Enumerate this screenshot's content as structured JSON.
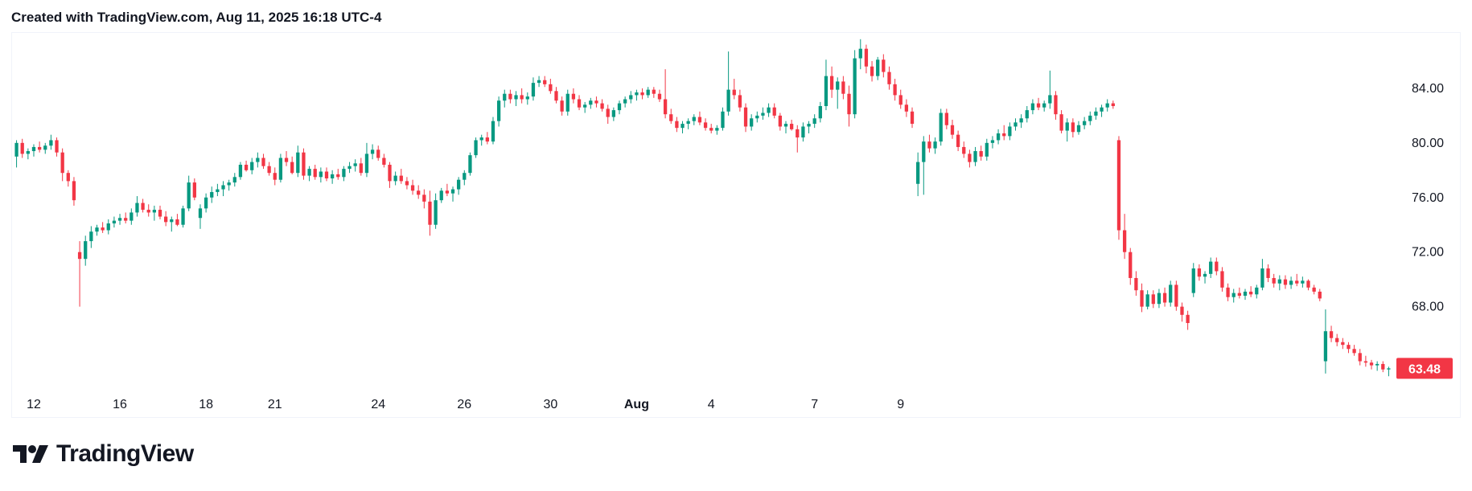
{
  "header": {
    "created_text": "Created with TradingView.com, Aug 11, 2025 16:18 UTC-4"
  },
  "brand": {
    "name": "TradingView",
    "logo_icon": "tradingview-logo-icon"
  },
  "colors": {
    "up": "#089981",
    "down": "#f23645",
    "text": "#131722",
    "border": "#f0f3fa"
  },
  "chart_data": {
    "type": "candlestick",
    "title": "",
    "xlabel": "",
    "ylabel": "",
    "ylim": [
      62.5,
      88.0
    ],
    "price_axis": {
      "ticks": [
        68.0,
        72.0,
        76.0,
        80.0,
        84.0
      ],
      "tick_labels": [
        "68.00",
        "72.00",
        "76.00",
        "80.00",
        "84.00"
      ]
    },
    "time_axis": {
      "labels": [
        {
          "text": "12",
          "index": 3,
          "month": false
        },
        {
          "text": "16",
          "index": 18,
          "month": false
        },
        {
          "text": "18",
          "index": 33,
          "month": false
        },
        {
          "text": "21",
          "index": 45,
          "month": false
        },
        {
          "text": "24",
          "index": 63,
          "month": false
        },
        {
          "text": "26",
          "index": 78,
          "month": false
        },
        {
          "text": "30",
          "index": 93,
          "month": false
        },
        {
          "text": "Aug",
          "index": 108,
          "month": true
        },
        {
          "text": "4",
          "index": 121,
          "month": false
        },
        {
          "text": "7",
          "index": 139,
          "month": false
        },
        {
          "text": "9",
          "index": 154,
          "month": false
        }
      ]
    },
    "last_price": {
      "value": 63.48,
      "label": "63.48"
    },
    "candles": [
      [
        79.0,
        80.2,
        78.2,
        80.0
      ],
      [
        80.0,
        80.3,
        78.9,
        79.2
      ],
      [
        79.2,
        79.6,
        78.8,
        79.4
      ],
      [
        79.4,
        79.9,
        79.0,
        79.7
      ],
      [
        79.7,
        80.1,
        79.3,
        79.5
      ],
      [
        79.5,
        80.0,
        79.2,
        79.8
      ],
      [
        79.8,
        80.6,
        79.5,
        80.2
      ],
      [
        80.2,
        80.4,
        79.0,
        79.3
      ],
      [
        79.3,
        79.6,
        77.2,
        77.8
      ],
      [
        77.8,
        78.0,
        76.8,
        77.2
      ],
      [
        77.2,
        77.5,
        75.4,
        75.8
      ],
      [
        72.0,
        72.8,
        68.0,
        71.5
      ],
      [
        71.5,
        73.2,
        71.0,
        72.8
      ],
      [
        72.8,
        73.9,
        72.3,
        73.5
      ],
      [
        73.5,
        74.0,
        73.2,
        73.8
      ],
      [
        73.8,
        74.2,
        73.4,
        73.6
      ],
      [
        73.6,
        74.4,
        73.3,
        74.1
      ],
      [
        74.1,
        74.6,
        73.8,
        74.3
      ],
      [
        74.3,
        74.8,
        74.0,
        74.5
      ],
      [
        74.5,
        74.9,
        74.1,
        74.3
      ],
      [
        74.3,
        75.2,
        74.0,
        74.9
      ],
      [
        74.9,
        76.1,
        74.6,
        75.6
      ],
      [
        75.6,
        75.9,
        74.9,
        75.1
      ],
      [
        75.1,
        75.5,
        74.6,
        74.9
      ],
      [
        74.9,
        75.4,
        74.3,
        75.1
      ],
      [
        75.1,
        75.4,
        74.4,
        74.6
      ],
      [
        74.6,
        75.0,
        73.9,
        74.2
      ],
      [
        74.2,
        74.6,
        73.5,
        74.4
      ],
      [
        74.4,
        74.8,
        73.9,
        74.0
      ],
      [
        74.0,
        75.4,
        73.8,
        75.2
      ],
      [
        75.2,
        77.6,
        75.0,
        77.1
      ],
      [
        77.1,
        77.4,
        75.8,
        76.0
      ],
      [
        74.5,
        75.5,
        73.7,
        75.2
      ],
      [
        75.2,
        76.3,
        74.9,
        76.0
      ],
      [
        76.0,
        76.8,
        75.6,
        76.4
      ],
      [
        76.4,
        77.0,
        76.1,
        76.6
      ],
      [
        76.6,
        77.2,
        76.1,
        76.9
      ],
      [
        76.9,
        77.3,
        76.5,
        77.1
      ],
      [
        77.1,
        77.8,
        76.8,
        77.5
      ],
      [
        77.5,
        78.6,
        77.3,
        78.4
      ],
      [
        78.4,
        78.7,
        77.9,
        78.0
      ],
      [
        78.0,
        78.9,
        77.7,
        78.6
      ],
      [
        78.6,
        79.3,
        78.2,
        78.9
      ],
      [
        78.9,
        79.2,
        78.1,
        78.3
      ],
      [
        78.3,
        78.6,
        77.6,
        77.8
      ],
      [
        77.8,
        78.2,
        76.9,
        77.3
      ],
      [
        77.3,
        79.2,
        77.1,
        78.9
      ],
      [
        78.9,
        79.4,
        78.3,
        78.6
      ],
      [
        78.6,
        79.0,
        77.7,
        77.8
      ],
      [
        77.8,
        79.8,
        77.5,
        79.3
      ],
      [
        79.3,
        79.6,
        77.3,
        77.6
      ],
      [
        77.6,
        78.3,
        77.2,
        78.1
      ],
      [
        78.1,
        78.4,
        77.3,
        77.5
      ],
      [
        77.5,
        78.2,
        77.1,
        77.9
      ],
      [
        77.9,
        78.2,
        77.2,
        77.4
      ],
      [
        77.4,
        78.0,
        77.0,
        77.7
      ],
      [
        77.7,
        78.1,
        77.3,
        77.5
      ],
      [
        77.5,
        78.3,
        77.2,
        78.1
      ],
      [
        78.1,
        78.6,
        77.8,
        78.3
      ],
      [
        78.3,
        78.8,
        77.9,
        78.5
      ],
      [
        78.5,
        78.9,
        77.6,
        77.8
      ],
      [
        77.8,
        80.0,
        77.5,
        79.2
      ],
      [
        79.2,
        79.9,
        78.8,
        79.5
      ],
      [
        79.5,
        79.8,
        78.7,
        78.9
      ],
      [
        78.9,
        79.2,
        78.2,
        78.4
      ],
      [
        78.4,
        78.6,
        76.7,
        77.2
      ],
      [
        77.2,
        77.9,
        76.9,
        77.6
      ],
      [
        77.6,
        78.1,
        77.0,
        77.2
      ],
      [
        77.2,
        77.5,
        76.6,
        76.9
      ],
      [
        76.9,
        77.3,
        76.2,
        76.5
      ],
      [
        76.5,
        76.9,
        75.9,
        76.2
      ],
      [
        76.2,
        76.6,
        75.2,
        75.7
      ],
      [
        75.7,
        76.5,
        73.2,
        74.0
      ],
      [
        74.0,
        76.3,
        73.7,
        75.8
      ],
      [
        75.8,
        76.7,
        75.6,
        76.5
      ],
      [
        76.5,
        77.0,
        76.1,
        76.3
      ],
      [
        76.3,
        76.8,
        75.7,
        76.6
      ],
      [
        76.6,
        77.5,
        76.2,
        77.3
      ],
      [
        77.3,
        78.0,
        76.9,
        77.8
      ],
      [
        77.8,
        79.3,
        77.6,
        79.1
      ],
      [
        79.1,
        80.4,
        78.9,
        80.2
      ],
      [
        80.2,
        80.6,
        79.8,
        80.4
      ],
      [
        80.4,
        80.8,
        79.9,
        80.1
      ],
      [
        80.1,
        81.9,
        79.9,
        81.6
      ],
      [
        81.6,
        83.4,
        81.2,
        83.1
      ],
      [
        83.1,
        83.9,
        82.6,
        83.6
      ],
      [
        83.6,
        83.9,
        82.9,
        83.2
      ],
      [
        83.2,
        83.8,
        82.7,
        83.5
      ],
      [
        83.5,
        84.0,
        82.9,
        83.2
      ],
      [
        83.2,
        83.7,
        82.8,
        83.4
      ],
      [
        83.4,
        84.8,
        83.1,
        84.4
      ],
      [
        84.4,
        84.9,
        84.1,
        84.6
      ],
      [
        84.6,
        84.9,
        84.1,
        84.3
      ],
      [
        84.3,
        84.7,
        83.6,
        83.8
      ],
      [
        83.8,
        84.1,
        82.9,
        83.1
      ],
      [
        83.1,
        83.4,
        82.0,
        82.3
      ],
      [
        82.3,
        83.9,
        82.0,
        83.6
      ],
      [
        83.6,
        84.0,
        82.9,
        83.2
      ],
      [
        83.2,
        83.5,
        82.4,
        82.6
      ],
      [
        82.6,
        83.0,
        82.2,
        82.8
      ],
      [
        82.8,
        83.3,
        82.5,
        83.1
      ],
      [
        83.1,
        83.4,
        82.6,
        82.9
      ],
      [
        82.9,
        83.2,
        82.3,
        82.5
      ],
      [
        82.5,
        82.8,
        81.4,
        81.9
      ],
      [
        81.9,
        82.6,
        81.6,
        82.4
      ],
      [
        82.4,
        83.1,
        82.1,
        82.9
      ],
      [
        82.9,
        83.4,
        82.6,
        83.2
      ],
      [
        83.2,
        83.8,
        82.9,
        83.5
      ],
      [
        83.5,
        83.9,
        83.1,
        83.7
      ],
      [
        83.7,
        84.0,
        83.2,
        83.5
      ],
      [
        83.5,
        84.1,
        83.3,
        83.9
      ],
      [
        83.9,
        84.1,
        83.3,
        83.6
      ],
      [
        83.6,
        83.9,
        83.0,
        83.2
      ],
      [
        83.2,
        85.4,
        81.8,
        82.1
      ],
      [
        82.1,
        82.5,
        81.4,
        81.6
      ],
      [
        81.6,
        81.9,
        80.8,
        81.1
      ],
      [
        81.1,
        81.6,
        80.7,
        81.4
      ],
      [
        81.4,
        81.8,
        81.0,
        81.6
      ],
      [
        81.6,
        82.1,
        81.3,
        81.9
      ],
      [
        81.9,
        82.3,
        81.3,
        81.5
      ],
      [
        81.5,
        81.8,
        80.9,
        81.1
      ],
      [
        81.1,
        81.4,
        80.7,
        80.9
      ],
      [
        80.9,
        81.3,
        80.6,
        81.1
      ],
      [
        81.1,
        82.6,
        80.9,
        82.3
      ],
      [
        82.3,
        86.7,
        82.0,
        83.9
      ],
      [
        83.9,
        84.7,
        83.2,
        83.5
      ],
      [
        83.5,
        83.9,
        82.3,
        82.6
      ],
      [
        82.6,
        82.9,
        80.8,
        81.2
      ],
      [
        81.2,
        82.1,
        80.9,
        81.8
      ],
      [
        81.8,
        82.3,
        81.5,
        82.0
      ],
      [
        82.0,
        82.6,
        81.7,
        82.2
      ],
      [
        82.2,
        82.9,
        81.9,
        82.6
      ],
      [
        82.6,
        82.9,
        81.8,
        82.0
      ],
      [
        82.0,
        82.2,
        80.9,
        81.2
      ],
      [
        81.2,
        81.6,
        80.7,
        81.4
      ],
      [
        81.4,
        81.7,
        80.9,
        81.0
      ],
      [
        81.0,
        81.3,
        79.3,
        80.4
      ],
      [
        80.4,
        81.5,
        80.1,
        81.2
      ],
      [
        81.2,
        81.6,
        80.7,
        81.4
      ],
      [
        81.4,
        82.1,
        81.1,
        81.8
      ],
      [
        81.8,
        83.0,
        81.5,
        82.7
      ],
      [
        82.7,
        86.1,
        82.4,
        84.9
      ],
      [
        84.9,
        85.6,
        83.3,
        83.9
      ],
      [
        83.9,
        84.8,
        82.5,
        84.5
      ],
      [
        84.5,
        84.9,
        83.2,
        83.6
      ],
      [
        83.6,
        84.2,
        81.2,
        82.1
      ],
      [
        82.1,
        86.8,
        81.8,
        86.2
      ],
      [
        86.2,
        87.6,
        85.4,
        86.9
      ],
      [
        86.9,
        87.2,
        85.1,
        85.6
      ],
      [
        85.6,
        86.0,
        84.5,
        84.9
      ],
      [
        84.9,
        86.3,
        84.6,
        86.1
      ],
      [
        86.1,
        86.5,
        84.8,
        85.2
      ],
      [
        85.2,
        85.6,
        83.9,
        84.3
      ],
      [
        84.3,
        84.7,
        83.1,
        83.5
      ],
      [
        83.5,
        83.9,
        82.5,
        82.8
      ],
      [
        82.8,
        83.2,
        81.9,
        82.3
      ],
      [
        82.3,
        82.6,
        81.1,
        81.4
      ],
      [
        77.0,
        79.3,
        76.1,
        78.6
      ],
      [
        78.6,
        80.5,
        76.2,
        80.1
      ],
      [
        80.1,
        80.6,
        79.3,
        79.6
      ],
      [
        79.6,
        80.4,
        79.2,
        80.1
      ],
      [
        80.1,
        82.5,
        79.8,
        82.2
      ],
      [
        82.2,
        82.5,
        81.0,
        81.3
      ],
      [
        81.3,
        81.7,
        80.3,
        80.6
      ],
      [
        80.6,
        80.9,
        79.4,
        79.7
      ],
      [
        79.7,
        80.1,
        78.9,
        79.2
      ],
      [
        79.2,
        79.5,
        78.2,
        78.6
      ],
      [
        78.6,
        79.7,
        78.3,
        79.4
      ],
      [
        79.4,
        79.8,
        78.7,
        79.0
      ],
      [
        79.0,
        80.3,
        78.7,
        80.0
      ],
      [
        80.0,
        80.5,
        79.6,
        80.2
      ],
      [
        80.2,
        81.0,
        79.9,
        80.7
      ],
      [
        80.7,
        81.3,
        80.2,
        80.5
      ],
      [
        80.5,
        81.5,
        80.2,
        81.2
      ],
      [
        81.2,
        81.8,
        80.9,
        81.5
      ],
      [
        81.5,
        82.1,
        81.1,
        81.8
      ],
      [
        81.8,
        82.7,
        81.5,
        82.4
      ],
      [
        82.4,
        83.2,
        82.1,
        82.9
      ],
      [
        82.9,
        83.3,
        82.4,
        82.6
      ],
      [
        82.6,
        83.1,
        82.3,
        82.9
      ],
      [
        82.9,
        85.3,
        82.5,
        83.5
      ],
      [
        83.5,
        83.8,
        81.7,
        82.1
      ],
      [
        82.1,
        82.4,
        80.7,
        80.9
      ],
      [
        80.9,
        81.8,
        80.1,
        81.5
      ],
      [
        81.5,
        81.8,
        80.4,
        80.8
      ],
      [
        80.8,
        81.6,
        80.6,
        81.3
      ],
      [
        81.3,
        81.9,
        81.0,
        81.6
      ],
      [
        81.6,
        82.3,
        81.3,
        82.0
      ],
      [
        82.0,
        82.6,
        81.7,
        82.3
      ],
      [
        82.3,
        82.8,
        81.9,
        82.6
      ],
      [
        82.6,
        83.2,
        82.3,
        82.9
      ],
      [
        82.9,
        83.1,
        82.5,
        82.7
      ],
      [
        80.2,
        80.5,
        72.9,
        73.6
      ],
      [
        73.6,
        74.8,
        71.5,
        72.0
      ],
      [
        72.0,
        72.3,
        69.6,
        70.1
      ],
      [
        70.1,
        70.6,
        68.8,
        69.2
      ],
      [
        69.2,
        69.7,
        67.6,
        68.0
      ],
      [
        68.0,
        69.2,
        67.8,
        68.9
      ],
      [
        68.9,
        69.2,
        67.9,
        68.2
      ],
      [
        68.2,
        69.3,
        67.9,
        69.0
      ],
      [
        69.0,
        69.4,
        68.0,
        68.3
      ],
      [
        68.3,
        69.9,
        68.0,
        69.6
      ],
      [
        69.6,
        69.9,
        67.7,
        68.0
      ],
      [
        68.0,
        68.3,
        66.9,
        67.4
      ],
      [
        67.4,
        67.7,
        66.3,
        66.8
      ],
      [
        69.0,
        71.2,
        68.7,
        70.8
      ],
      [
        70.8,
        71.1,
        69.9,
        70.2
      ],
      [
        70.2,
        70.6,
        69.7,
        70.4
      ],
      [
        70.4,
        71.6,
        70.1,
        71.3
      ],
      [
        71.3,
        71.6,
        70.3,
        70.6
      ],
      [
        70.6,
        70.9,
        69.1,
        69.4
      ],
      [
        69.4,
        69.7,
        68.4,
        68.7
      ],
      [
        68.7,
        69.3,
        68.3,
        69.0
      ],
      [
        69.0,
        69.4,
        68.6,
        68.8
      ],
      [
        68.8,
        69.3,
        68.5,
        69.1
      ],
      [
        69.1,
        69.5,
        68.7,
        68.9
      ],
      [
        68.9,
        69.6,
        68.6,
        69.4
      ],
      [
        69.4,
        71.5,
        69.2,
        70.8
      ],
      [
        70.8,
        71.1,
        69.8,
        70.1
      ],
      [
        70.1,
        70.4,
        69.4,
        69.7
      ],
      [
        69.7,
        70.3,
        69.2,
        70.0
      ],
      [
        70.0,
        70.3,
        69.3,
        69.6
      ],
      [
        69.6,
        70.2,
        69.3,
        69.9
      ],
      [
        69.9,
        70.4,
        69.5,
        69.7
      ],
      [
        69.7,
        70.2,
        69.4,
        69.9
      ],
      [
        69.9,
        70.0,
        69.2,
        69.4
      ],
      [
        69.4,
        69.6,
        68.9,
        69.1
      ],
      [
        69.1,
        69.3,
        68.4,
        68.6
      ],
      [
        64.0,
        67.8,
        63.1,
        66.2
      ],
      [
        66.2,
        66.6,
        65.4,
        65.7
      ],
      [
        65.7,
        66.0,
        65.1,
        65.4
      ],
      [
        65.4,
        65.7,
        64.9,
        65.2
      ],
      [
        65.2,
        65.4,
        64.6,
        64.9
      ],
      [
        64.9,
        65.2,
        64.4,
        64.6
      ],
      [
        64.6,
        64.9,
        63.7,
        64.0
      ],
      [
        64.0,
        64.4,
        63.6,
        63.9
      ],
      [
        63.9,
        64.1,
        63.4,
        63.7
      ],
      [
        63.7,
        64.0,
        63.3,
        63.8
      ],
      [
        63.8,
        64.0,
        63.2,
        63.4
      ],
      [
        63.4,
        63.6,
        62.9,
        63.48
      ]
    ]
  }
}
